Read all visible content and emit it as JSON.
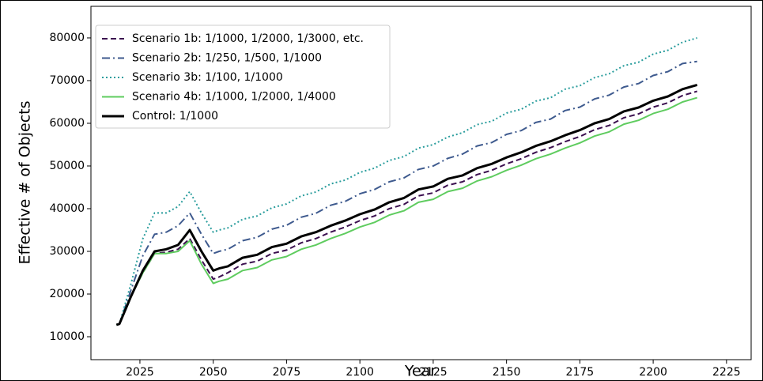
{
  "chart_data": {
    "type": "line",
    "x_label": "Year",
    "y_label": "Effective # of Objects",
    "x": [
      2017,
      2018,
      2022,
      2026,
      2030,
      2034,
      2038,
      2042,
      2046,
      2050,
      2052,
      2055,
      2060,
      2065,
      2070,
      2075,
      2080,
      2085,
      2090,
      2095,
      2100,
      2105,
      2110,
      2115,
      2120,
      2125,
      2130,
      2135,
      2140,
      2145,
      2150,
      2155,
      2160,
      2165,
      2170,
      2175,
      2180,
      2185,
      2190,
      2195,
      2200,
      2205,
      2210,
      2215
    ],
    "series": [
      {
        "name": "Scenario 1b: 1/1000, 1/2000, 1/3000, etc.",
        "color": "#3b0f4f",
        "dash": "dashed",
        "width": 2,
        "values": [
          12800,
          13000,
          19500,
          25000,
          29500,
          29800,
          30500,
          33000,
          28000,
          23500,
          24000,
          25000,
          27000,
          27700,
          29500,
          30300,
          32000,
          33000,
          34500,
          35700,
          37200,
          38300,
          40000,
          41000,
          43000,
          43700,
          45500,
          46300,
          48000,
          49000,
          50500,
          51700,
          53200,
          54300,
          55700,
          56900,
          58500,
          59500,
          61300,
          62200,
          63800,
          64800,
          66500,
          67500
        ]
      },
      {
        "name": "Scenario 2b: 1/250, 1/500, 1/1000",
        "color": "#3e5a8e",
        "dash": "dashdot",
        "width": 2,
        "values": [
          12800,
          13000,
          21000,
          29000,
          34000,
          34500,
          36000,
          39000,
          34000,
          29500,
          30000,
          30500,
          32500,
          33300,
          35200,
          36100,
          38000,
          38900,
          40800,
          41700,
          43500,
          44500,
          46300,
          47200,
          49200,
          50000,
          51800,
          52800,
          54700,
          55500,
          57400,
          58300,
          60200,
          61000,
          63000,
          63800,
          65700,
          66600,
          68500,
          69300,
          71200,
          72100,
          74000,
          74500
        ]
      },
      {
        "name": "Scenario 3b: 1/100, 1/1000",
        "color": "#2a9d9d",
        "dash": "dotted",
        "width": 2,
        "values": [
          12800,
          13000,
          22500,
          33000,
          39000,
          39000,
          40500,
          44000,
          39000,
          34500,
          35000,
          35500,
          37500,
          38300,
          40200,
          41100,
          43000,
          43900,
          45800,
          46700,
          48500,
          49500,
          51300,
          52200,
          54200,
          55000,
          56800,
          57800,
          59700,
          60500,
          62400,
          63300,
          65200,
          66000,
          68000,
          68800,
          70700,
          71600,
          73500,
          74300,
          76200,
          77100,
          79000,
          80000
        ]
      },
      {
        "name": "Scenario 4b: 1/1000, 1/2000, 1/4000",
        "color": "#5fcc5f",
        "dash": "solid",
        "width": 2,
        "values": [
          12800,
          13000,
          19500,
          25000,
          29500,
          29500,
          30000,
          32500,
          27000,
          22500,
          23000,
          23500,
          25500,
          26200,
          28000,
          28800,
          30500,
          31500,
          33000,
          34200,
          35700,
          36800,
          38500,
          39500,
          41500,
          42200,
          44000,
          44800,
          46500,
          47500,
          49000,
          50200,
          51700,
          52800,
          54200,
          55400,
          57000,
          58000,
          59800,
          60700,
          62300,
          63300,
          65000,
          66000
        ]
      },
      {
        "name": "Control: 1/1000",
        "color": "#000000",
        "dash": "solid",
        "width": 3,
        "values": [
          12800,
          13000,
          19500,
          25500,
          30000,
          30500,
          31500,
          35000,
          30000,
          25500,
          26000,
          26500,
          28500,
          29200,
          31000,
          31800,
          33500,
          34500,
          36000,
          37200,
          38700,
          39800,
          41500,
          42500,
          44500,
          45200,
          47000,
          47800,
          49500,
          50500,
          52000,
          53200,
          54700,
          55800,
          57200,
          58400,
          60000,
          61000,
          62800,
          63700,
          65300,
          66300,
          68000,
          69000
        ]
      }
    ],
    "xlim": [
      2008.3,
      2233.4
    ],
    "xticks": [
      2025,
      2050,
      2075,
      2100,
      2125,
      2150,
      2175,
      2200,
      2225
    ],
    "ylim": [
      4630,
      87400
    ],
    "yticks": [
      10000,
      20000,
      30000,
      40000,
      50000,
      60000,
      70000,
      80000
    ],
    "legend": "upper left"
  }
}
